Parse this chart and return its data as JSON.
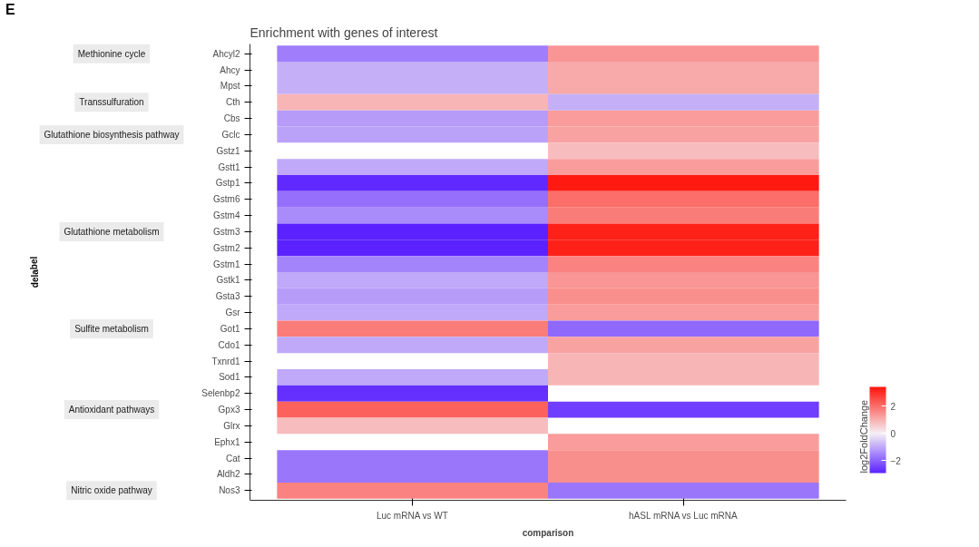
{
  "chart_data": {
    "type": "heatmap",
    "title": "Enrichment with genes of interest",
    "xlabel": "comparison",
    "clabel": "log2FoldChange",
    "categories": [
      "Luc mRNA vs WT",
      "hASL mRNA vs Luc mRNA"
    ],
    "y_categories": [
      "Ahcyl2",
      "Ahcy",
      "Mpst",
      "Cth",
      "Cbs",
      "Gclc",
      "Gstz1",
      "Gstt1",
      "Gstp1",
      "Gstm6",
      "Gstm4",
      "Gstm3",
      "Gstm2",
      "Gstm1",
      "Gstk1",
      "Gsta3",
      "Gsr",
      "Got1",
      "Cdo1",
      "Txnrd1",
      "Sod1",
      "Selenbp2",
      "Gpx3",
      "Glrx",
      "Ephx1",
      "Cat",
      "Aldh2",
      "Nos3"
    ],
    "cells": [
      [
        -1.6,
        1.4
      ],
      [
        -0.9,
        1.1
      ],
      [
        -0.9,
        1.1
      ],
      [
        0.9,
        -0.9
      ],
      [
        -1.2,
        1.3
      ],
      [
        -1.1,
        1.2
      ],
      [
        null,
        0.8
      ],
      [
        -1.0,
        1.3
      ],
      [
        -2.8,
        3.3
      ],
      [
        -1.8,
        2.0
      ],
      [
        -1.4,
        1.8
      ],
      [
        -2.9,
        3.2
      ],
      [
        -2.9,
        3.2
      ],
      [
        -1.5,
        1.7
      ],
      [
        -1.0,
        1.4
      ],
      [
        -1.2,
        1.5
      ],
      [
        -1.0,
        1.3
      ],
      [
        1.8,
        -1.9
      ],
      [
        -1.0,
        1.2
      ],
      [
        null,
        0.9
      ],
      [
        -1.0,
        0.9
      ],
      [
        -2.7,
        null
      ],
      [
        2.2,
        -2.5
      ],
      [
        0.8,
        null
      ],
      [
        null,
        1.3
      ],
      [
        -1.7,
        1.5
      ],
      [
        -1.7,
        1.5
      ],
      [
        1.7,
        -1.7
      ]
    ],
    "clim": [
      -2.9,
      3.4
    ],
    "cticks": [
      -2,
      0,
      2
    ],
    "y2_categories": [
      "Methionine cycle",
      null,
      null,
      "Transsulfuration",
      null,
      "Glutathione biosynthesis pathway",
      null,
      null,
      null,
      null,
      null,
      "Glutathione metabolism",
      null,
      null,
      null,
      null,
      null,
      "Sulfite metabolism",
      null,
      null,
      null,
      null,
      "Antioxidant pathways",
      null,
      null,
      null,
      null,
      "Nitric oxide pathway"
    ],
    "annotations": [
      "E",
      "delabel"
    ]
  }
}
